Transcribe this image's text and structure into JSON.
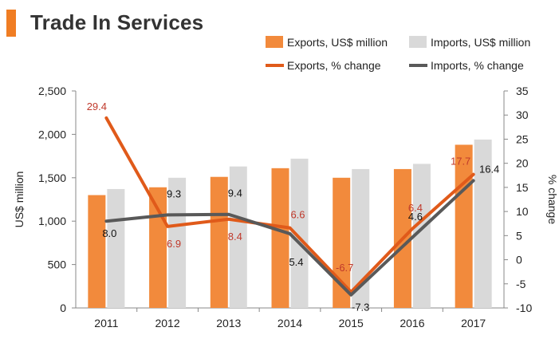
{
  "title": "Trade In Services",
  "colors": {
    "accent": "#f07d23",
    "exports_bar": "#f28a3c",
    "imports_bar": "#d9d9d9",
    "exports_line": "#e05a1a",
    "imports_line": "#595959",
    "exports_label": "#c0392b",
    "imports_label": "#111111"
  },
  "legend": {
    "exports_bar": "Exports, US$ million",
    "imports_bar": "Imports, US$ million",
    "exports_line": "Exports, % change",
    "imports_line": "Imports, % change"
  },
  "chart_data": {
    "type": "bar+line",
    "title": "Trade In Services",
    "categories": [
      "2011",
      "2012",
      "2013",
      "2014",
      "2015",
      "2016",
      "2017"
    ],
    "ylabel": "US$ million",
    "y2label": "% change",
    "ylim": [
      0,
      2500
    ],
    "y_ticks": [
      "0",
      "500",
      "1,000",
      "1,500",
      "2,000",
      "2,500"
    ],
    "y_tick_values": [
      0,
      500,
      1000,
      1500,
      2000,
      2500
    ],
    "y2lim": [
      -10,
      35
    ],
    "y2_ticks": [
      "-10",
      "-5",
      "0",
      "5",
      "10",
      "15",
      "20",
      "25",
      "30",
      "35"
    ],
    "y2_tick_values": [
      -10,
      -5,
      0,
      5,
      10,
      15,
      20,
      25,
      30,
      35
    ],
    "bar_series": [
      {
        "name": "Exports, US$ million",
        "values": [
          1300,
          1390,
          1510,
          1610,
          1500,
          1600,
          1880
        ]
      },
      {
        "name": "Imports, US$ million",
        "values": [
          1370,
          1500,
          1630,
          1720,
          1600,
          1660,
          1940
        ]
      }
    ],
    "line_series": [
      {
        "name": "Exports, % change",
        "values": [
          29.4,
          6.9,
          8.4,
          6.6,
          -6.7,
          6.4,
          17.7
        ],
        "labels": [
          "29.4",
          "6.9",
          "8.4",
          "6.6",
          "-6.7",
          "6.4",
          "17.7"
        ]
      },
      {
        "name": "Imports, % change",
        "values": [
          8.0,
          9.3,
          9.4,
          5.4,
          -7.3,
          4.6,
          16.4
        ],
        "labels": [
          "8.0",
          "9.3",
          "9.4",
          "5.4",
          "-7.3",
          "4.6",
          "16.4"
        ]
      }
    ],
    "grid": false,
    "legend_position": "top-right"
  }
}
